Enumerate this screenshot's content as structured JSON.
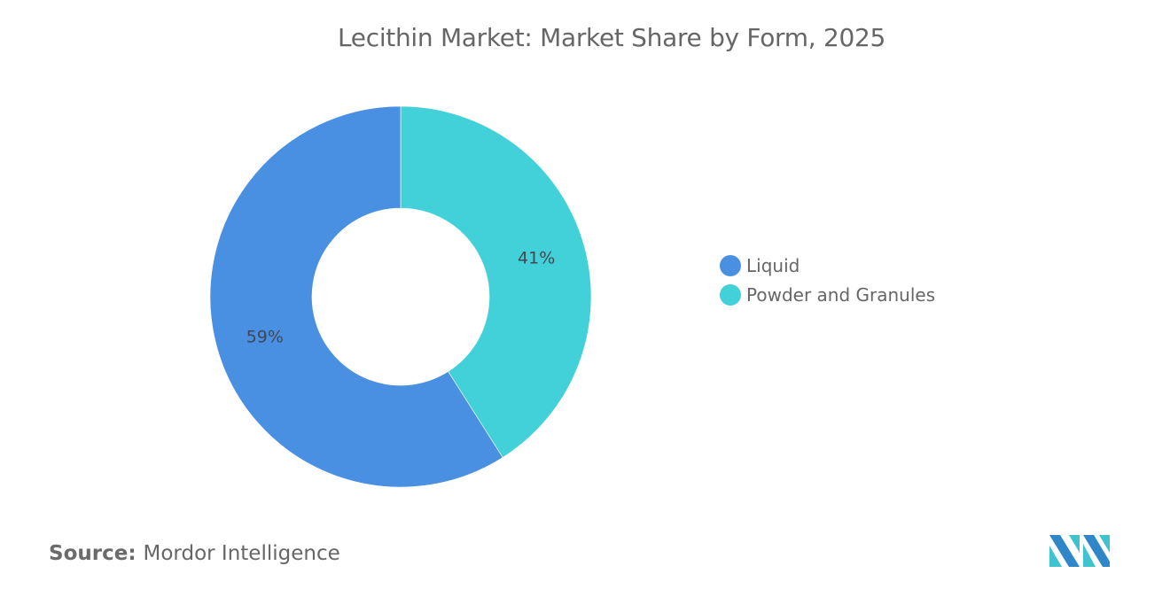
{
  "header": {
    "title": "Lecithin Market: Market Share by Form, 2025"
  },
  "chart_data": {
    "type": "pie",
    "variant": "donut",
    "title": "Lecithin Market: Market Share by Form, 2025",
    "categories": [
      "Liquid",
      "Powder and Granules"
    ],
    "values": [
      59,
      41
    ],
    "unit": "%",
    "data_labels": [
      "59%",
      "41%"
    ],
    "colors": [
      "#4a90e2",
      "#42d0d9"
    ],
    "legend_position": "right"
  },
  "legend": {
    "items": [
      {
        "label": "Liquid",
        "color": "#4a90e2"
      },
      {
        "label": "Powder and Granules",
        "color": "#42d0d9"
      }
    ]
  },
  "footer": {
    "source_label": "Source:",
    "source_value": "Mordor Intelligence",
    "logo_icon": "mordor-intelligence-logo-icon"
  }
}
